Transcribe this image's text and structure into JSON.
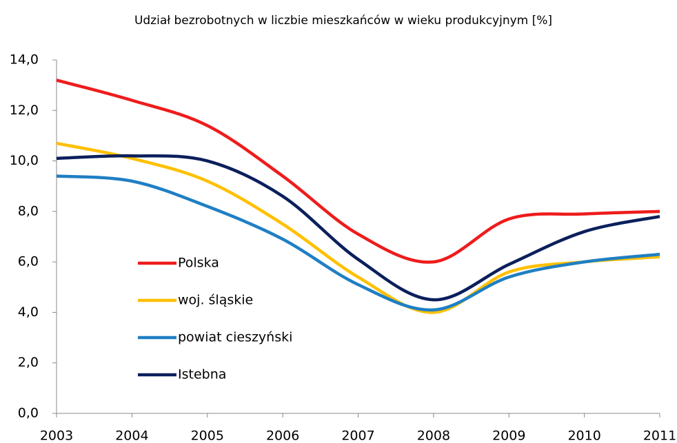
{
  "chart_data": {
    "type": "line",
    "title": "Udział bezrobotnych w liczbie mieszkańców w wieku produkcyjnym [%]",
    "x": [
      2003,
      2004,
      2005,
      2006,
      2007,
      2008,
      2009,
      2010,
      2011
    ],
    "xlim": [
      2003,
      2011
    ],
    "xticks": [
      2003,
      2004,
      2005,
      2006,
      2007,
      2008,
      2009,
      2010,
      2011
    ],
    "ylim": [
      0,
      14
    ],
    "yticks": [
      {
        "value": 0,
        "label": "0,0"
      },
      {
        "value": 2,
        "label": "2,0"
      },
      {
        "value": 4,
        "label": "4,0"
      },
      {
        "value": 6,
        "label": "6,0"
      },
      {
        "value": 8,
        "label": "8,0"
      },
      {
        "value": 10,
        "label": "10,0"
      },
      {
        "value": 12,
        "label": "12,0"
      },
      {
        "value": 14,
        "label": "14,0"
      }
    ],
    "grid": false,
    "legend": "left",
    "series": [
      {
        "name": "Polska",
        "color": "#ee1c1c",
        "values": [
          13.2,
          12.4,
          11.4,
          9.4,
          7.1,
          6.0,
          7.7,
          7.9,
          8.0
        ]
      },
      {
        "name": "woj. śląskie",
        "color": "#ffc000",
        "values": [
          10.7,
          10.1,
          9.2,
          7.5,
          5.4,
          4.0,
          5.6,
          6.0,
          6.2
        ]
      },
      {
        "name": "powiat cieszyński",
        "color": "#1f7fc4",
        "values": [
          9.4,
          9.2,
          8.2,
          6.9,
          5.1,
          4.1,
          5.4,
          6.0,
          6.3
        ]
      },
      {
        "name": "Istebna",
        "color": "#0b1f5c",
        "values": [
          10.1,
          10.2,
          10.0,
          8.6,
          6.1,
          4.5,
          5.9,
          7.2,
          7.8
        ]
      }
    ]
  }
}
